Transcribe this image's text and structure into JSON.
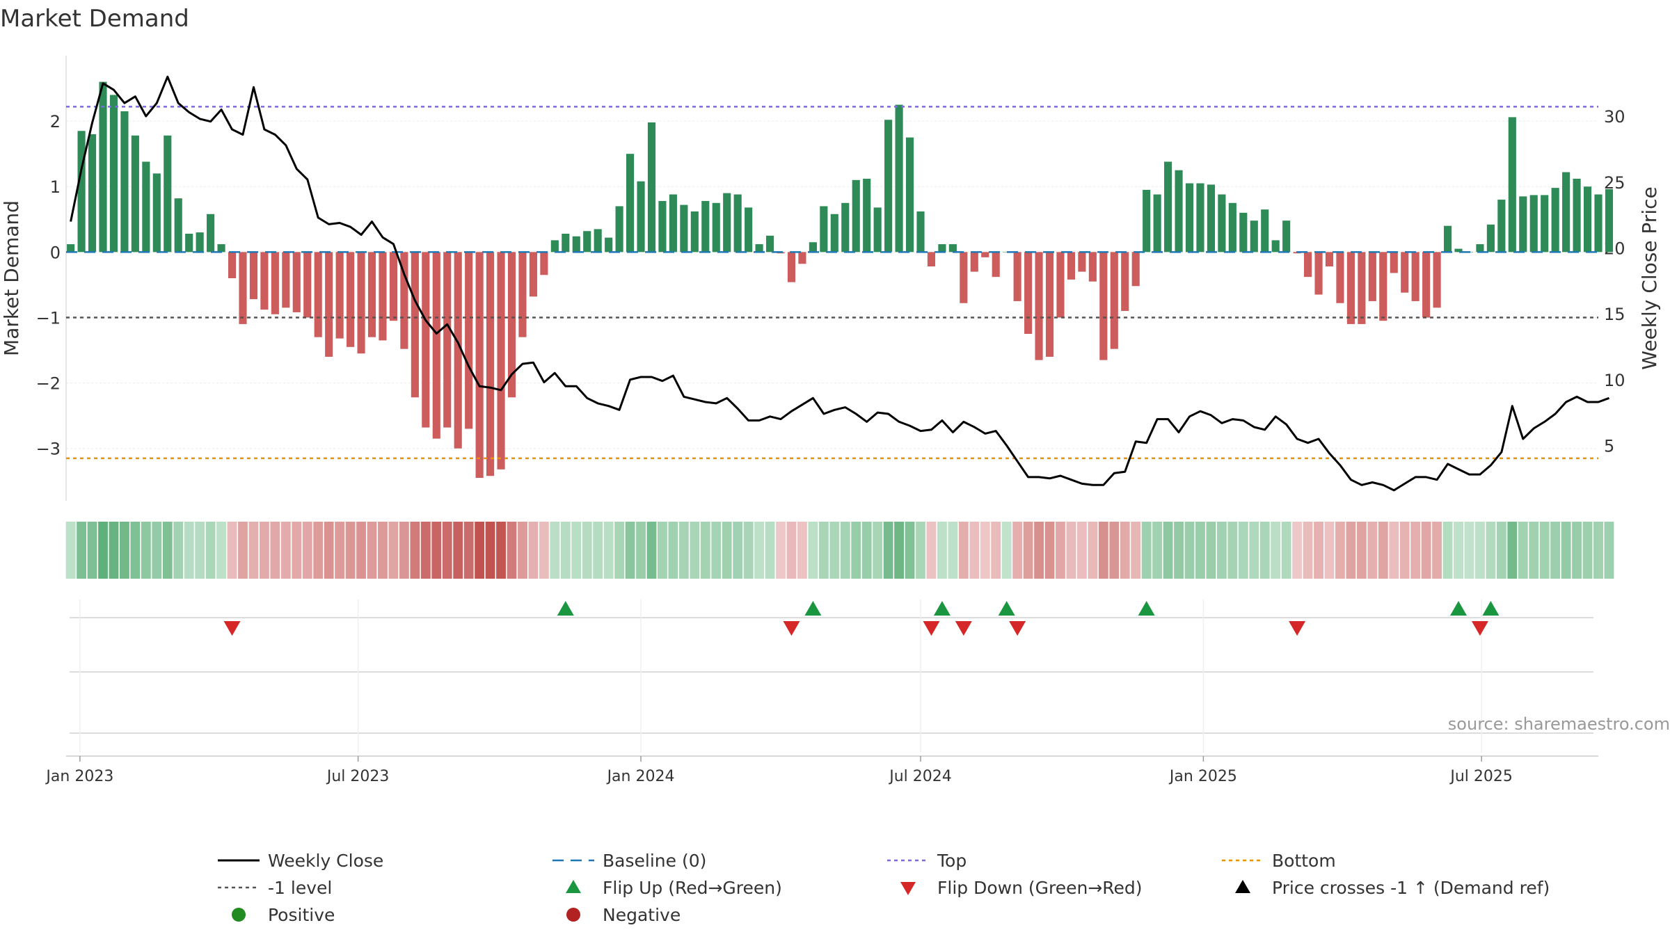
{
  "chart_data": {
    "type": "bar",
    "title": "Market Demand",
    "ylabel": "Market Demand",
    "y2label": "Weekly Close Price",
    "ylim": [
      -3.8,
      3.0
    ],
    "y2lim": [
      0.8,
      34.6
    ],
    "yticks": [
      2,
      1,
      0,
      -1,
      -2,
      -3
    ],
    "yticklabels": [
      "2",
      "1",
      "0",
      "−1",
      "−2",
      "−3"
    ],
    "y2ticks": [
      30,
      25,
      20,
      15,
      10,
      5
    ],
    "y2ticklabels": [
      "30",
      "25",
      "20",
      "15",
      "10",
      "5"
    ],
    "xlim": [
      "2022-12-23",
      "2025-09-15"
    ],
    "xticks": [
      "2023-01-01",
      "2023-07-01",
      "2024-01-01",
      "2024-07-01",
      "2025-01-01",
      "2025-07-01"
    ],
    "xticklabels": [
      "Jan 2023",
      "Jul 2023",
      "Jan 2024",
      "Jul 2024",
      "Jan 2025",
      "Jul 2025"
    ],
    "first_week": "2022-12-26",
    "levels": {
      "baseline": 0,
      "top": 2.22,
      "minus_one": -1,
      "bottom": -3.15
    },
    "colors": {
      "positive": "#2e8b57",
      "negative": "#cd5c5c",
      "close": "#000000",
      "baseline": "#1f77b4",
      "top": "#7b68ee",
      "minus_one": "#555555",
      "bottom": "#e69500",
      "flip_up": "#1a9641",
      "flip_down": "#d62728"
    },
    "series": [
      {
        "name": "Market Demand",
        "values": [
          0.12,
          1.85,
          1.8,
          2.6,
          2.4,
          2.15,
          1.78,
          1.38,
          1.2,
          1.78,
          0.82,
          0.28,
          0.3,
          0.58,
          0.12,
          -0.4,
          -1.1,
          -0.72,
          -0.88,
          -0.95,
          -0.85,
          -0.92,
          -1.0,
          -1.3,
          -1.6,
          -1.32,
          -1.45,
          -1.55,
          -1.3,
          -1.35,
          -1.05,
          -1.48,
          -2.22,
          -2.68,
          -2.85,
          -2.68,
          -3.0,
          -2.7,
          -3.45,
          -3.42,
          -3.32,
          -2.22,
          -1.3,
          -0.68,
          -0.35,
          0.18,
          0.28,
          0.24,
          0.32,
          0.35,
          0.22,
          0.7,
          1.5,
          1.08,
          1.98,
          0.78,
          0.88,
          0.72,
          0.62,
          0.78,
          0.75,
          0.9,
          0.88,
          0.68,
          0.12,
          0.25,
          -0.02,
          -0.46,
          -0.18,
          0.15,
          0.7,
          0.58,
          0.75,
          1.1,
          1.12,
          0.68,
          2.02,
          2.25,
          1.75,
          0.62,
          -0.22,
          0.12,
          0.12,
          -0.78,
          -0.3,
          -0.08,
          -0.38,
          0.0,
          -0.75,
          -1.25,
          -1.65,
          -1.6,
          -1.0,
          -0.42,
          -0.3,
          -0.45,
          -1.65,
          -1.48,
          -0.9,
          -0.52,
          0.95,
          0.88,
          1.38,
          1.25,
          1.05,
          1.05,
          1.03,
          0.88,
          0.75,
          0.6,
          0.48,
          0.65,
          0.18,
          0.48,
          -0.02,
          -0.38,
          -0.65,
          -0.22,
          -0.78,
          -1.1,
          -1.1,
          -0.75,
          -1.05,
          -0.32,
          -0.62,
          -0.75,
          -1.0,
          -0.85,
          0.4,
          0.05,
          0.0,
          0.12,
          0.42,
          0.8,
          2.06,
          0.85,
          0.87,
          0.87,
          0.98,
          1.22,
          1.12,
          1.0,
          0.88,
          0.96
        ]
      },
      {
        "name": "Weekly Close",
        "values": [
          22.0,
          26.0,
          29.5,
          32.5,
          32.0,
          31.0,
          31.5,
          30.0,
          31.0,
          33.0,
          31.0,
          30.3,
          29.8,
          29.6,
          30.5,
          29.0,
          28.6,
          32.2,
          29.0,
          28.6,
          27.8,
          26.0,
          25.2,
          22.3,
          21.8,
          21.9,
          21.6,
          21.0,
          22.0,
          20.8,
          20.3,
          18.0,
          16.0,
          14.5,
          13.5,
          14.2,
          12.8,
          11.0,
          9.5,
          9.4,
          9.2,
          10.4,
          11.2,
          11.3,
          9.8,
          10.5,
          9.5,
          9.5,
          8.6,
          8.2,
          8.0,
          7.7,
          10.0,
          10.2,
          10.2,
          9.9,
          10.3,
          8.7,
          8.5,
          8.3,
          8.2,
          8.6,
          7.8,
          6.9,
          6.9,
          7.2,
          7.0,
          7.6,
          8.1,
          8.6,
          7.4,
          7.7,
          7.9,
          7.4,
          6.8,
          7.5,
          7.4,
          6.8,
          6.5,
          6.1,
          6.2,
          6.9,
          6.0,
          6.8,
          6.4,
          5.9,
          6.1,
          5.0,
          3.8,
          2.6,
          2.6,
          2.5,
          2.7,
          2.4,
          2.1,
          2.0,
          2.0,
          2.9,
          3.0,
          5.3,
          5.2,
          7.0,
          7.0,
          6.0,
          7.2,
          7.6,
          7.3,
          6.7,
          7.0,
          6.9,
          6.4,
          6.2,
          7.2,
          6.6,
          5.5,
          5.2,
          5.5,
          4.4,
          3.5,
          2.4,
          2.0,
          2.2,
          2.0,
          1.6,
          2.1,
          2.6,
          2.6,
          2.4,
          3.6,
          3.2,
          2.8,
          2.8,
          3.5,
          4.5,
          8.0,
          5.5,
          6.3,
          6.8,
          7.4,
          8.3,
          8.7,
          8.3,
          8.3,
          8.6
        ]
      }
    ],
    "flip_up_weeks": [
      46,
      69,
      81,
      87,
      100,
      129,
      132
    ],
    "flip_down_weeks": [
      15,
      67,
      80,
      83,
      88,
      114,
      131
    ],
    "annotation": "source: sharemaestro.com",
    "legend": {
      "placement": "bottom",
      "items": [
        {
          "label": "Weekly Close",
          "marker": "solid-line",
          "color": "#000000"
        },
        {
          "label": "Baseline (0)",
          "marker": "dashed-line",
          "color": "#1f77b4"
        },
        {
          "label": "Top",
          "marker": "dotted-line",
          "color": "#7b68ee"
        },
        {
          "label": "Bottom",
          "marker": "dotted-line",
          "color": "#e69500"
        },
        {
          "label": "-1 level",
          "marker": "dotted-line",
          "color": "#555555"
        },
        {
          "label": "Flip Up (Red→Green)",
          "marker": "triangle-up",
          "color": "#1a9641"
        },
        {
          "label": "Flip Down (Green→Red)",
          "marker": "triangle-down",
          "color": "#d62728"
        },
        {
          "label": "Price crosses -1 ↑ (Demand ref)",
          "marker": "triangle-up",
          "color": "#000000"
        },
        {
          "label": "Positive",
          "marker": "circle",
          "color": "#228b22"
        },
        {
          "label": "Negative",
          "marker": "circle",
          "color": "#b22222"
        }
      ]
    }
  }
}
